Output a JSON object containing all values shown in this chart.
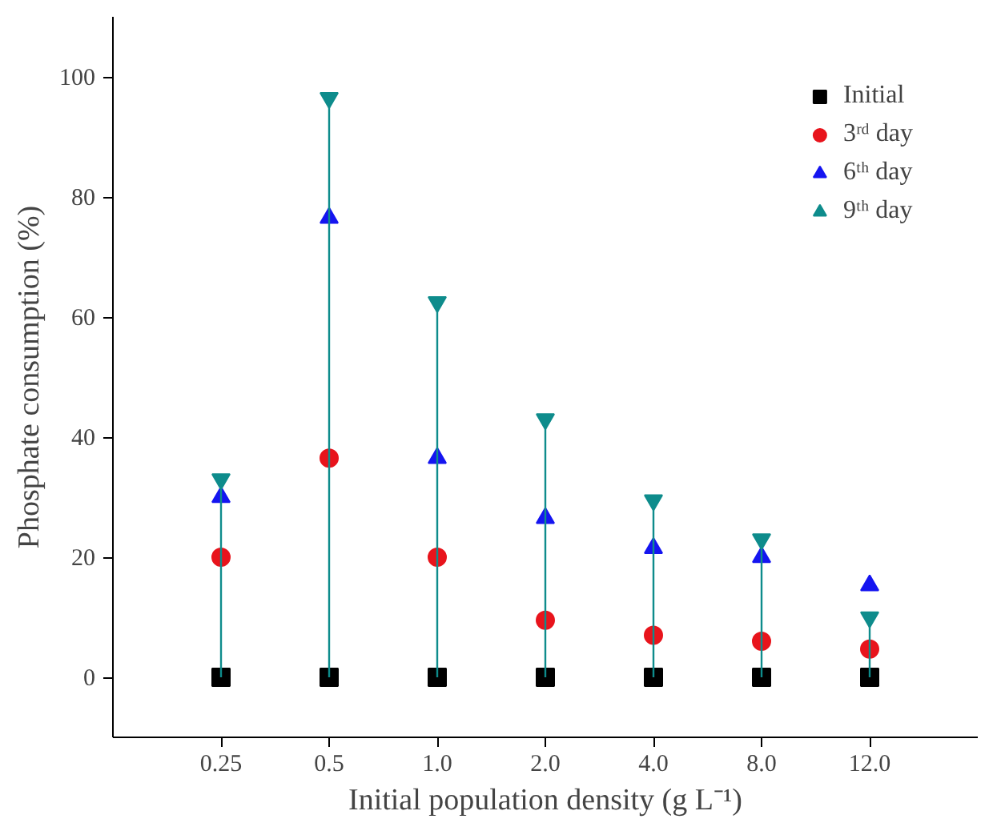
{
  "chart_data": {
    "type": "scatter",
    "xlabel": "Initial population density (g L⁻¹)",
    "ylabel": "Phosphate consumption (%)",
    "categories": [
      "0.25",
      "0.5",
      "1.0",
      "2.0",
      "4.0",
      "8.0",
      "12.0"
    ],
    "ylim": [
      -10,
      110
    ],
    "yticks": [
      0,
      20,
      40,
      60,
      80,
      100
    ],
    "grid": false,
    "legend": "top right",
    "series": [
      {
        "name": "Initial",
        "color": "#000000",
        "marker": "square",
        "values": [
          0,
          0,
          0,
          0,
          0,
          0,
          0
        ]
      },
      {
        "name": "3ʳᵈ day",
        "color": "#e8141c",
        "marker": "circle",
        "values": [
          20,
          36.5,
          20,
          9.5,
          7,
          6,
          4.7
        ]
      },
      {
        "name": "6ᵗʰ day",
        "color": "#1515f0",
        "marker": "triangle",
        "values": [
          30,
          76.5,
          36.5,
          26.5,
          21.5,
          20,
          15.3
        ]
      },
      {
        "name": "9ᵗʰ day",
        "type": "lollipop",
        "color": "#0e8c8c",
        "marker": "triangle",
        "values": [
          33,
          96.5,
          62.5,
          43,
          29.5,
          23,
          10
        ]
      }
    ]
  }
}
